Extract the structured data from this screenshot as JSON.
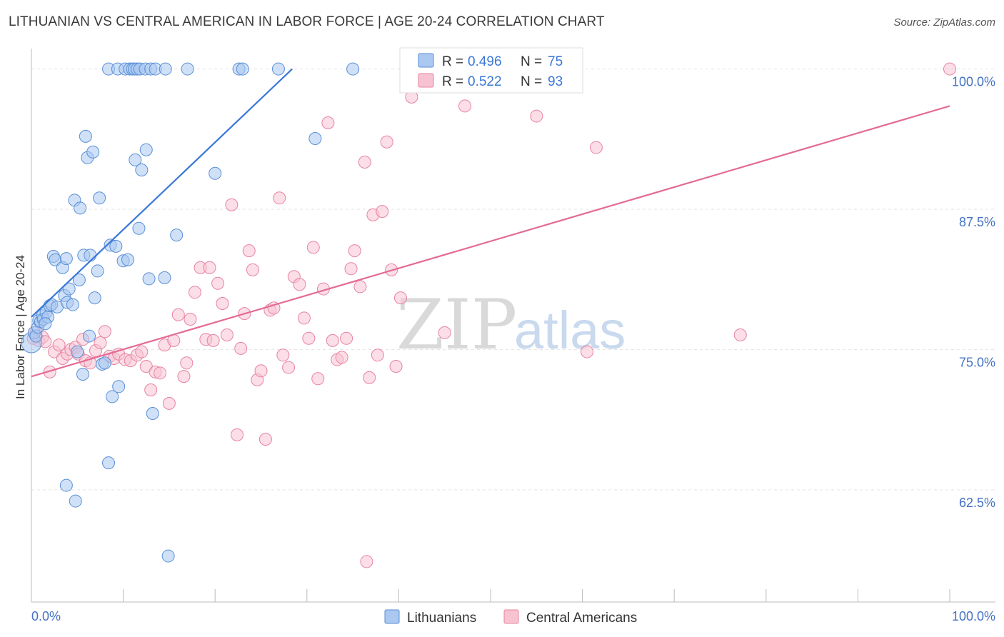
{
  "header": {
    "title": "LITHUANIAN VS CENTRAL AMERICAN IN LABOR FORCE | AGE 20-24 CORRELATION CHART",
    "source": "Source: ZipAtlas.com"
  },
  "watermark": {
    "zip": "ZIP",
    "atlas": "atlas"
  },
  "stats_box": {
    "rows": [
      {
        "r_label": "R =",
        "r_value": "0.496",
        "n_label": "N =",
        "n_value": "75"
      },
      {
        "r_label": "R =",
        "r_value": "0.522",
        "n_label": "N =",
        "n_value": "93"
      }
    ]
  },
  "legend": {
    "items": [
      {
        "label": "Lithuanians"
      },
      {
        "label": "Central Americans"
      }
    ]
  },
  "colors": {
    "blue_fill": "#aac8f0",
    "blue_stroke": "#5a8fd6",
    "blue_line": "#3a78d8",
    "pink_fill": "#f7c3d3",
    "pink_stroke": "#e7849f",
    "pink_line": "#e36b95",
    "tick_label": "#4472c4",
    "grid": "#e3e3e3"
  },
  "chart_data": {
    "type": "scatter",
    "title": "LITHUANIAN VS CENTRAL AMERICAN IN LABOR FORCE | AGE 20-24 CORRELATION CHART",
    "xlabel": "",
    "ylabel": "In Labor Force | Age 20-24",
    "xlim": [
      0,
      100
    ],
    "ylim": [
      52.5,
      101.5
    ],
    "x_tick_labels": [
      "0.0%",
      "100.0%"
    ],
    "y_ticks": [
      62.5,
      75.0,
      87.5,
      100.0
    ],
    "y_tick_labels": [
      "62.5%",
      "75.0%",
      "87.5%",
      "100.0%"
    ],
    "grid": true,
    "legend_position": "bottom-center",
    "series": [
      {
        "name": "Lithuanians",
        "stats": {
          "R": 0.496,
          "N": 75
        },
        "trend": {
          "x": [
            0.0,
            28.4
          ],
          "y": [
            77.9,
            100.0
          ]
        },
        "points": [
          [
            0.0,
            75.6
          ],
          [
            0.3,
            76.5
          ],
          [
            0.5,
            76.2
          ],
          [
            0.7,
            77.0
          ],
          [
            0.8,
            77.6
          ],
          [
            1.0,
            77.5
          ],
          [
            1.2,
            78.0
          ],
          [
            1.3,
            77.7
          ],
          [
            1.6,
            78.3
          ],
          [
            1.8,
            77.9
          ],
          [
            2.0,
            78.9
          ],
          [
            2.2,
            79.0
          ],
          [
            2.4,
            83.3
          ],
          [
            2.6,
            83.0
          ],
          [
            2.8,
            78.8
          ],
          [
            3.4,
            82.3
          ],
          [
            3.6,
            79.8
          ],
          [
            3.8,
            83.1
          ],
          [
            3.9,
            79.2
          ],
          [
            4.1,
            80.4
          ],
          [
            4.5,
            79.0
          ],
          [
            4.7,
            88.3
          ],
          [
            5.0,
            74.8
          ],
          [
            5.2,
            81.2
          ],
          [
            5.3,
            87.6
          ],
          [
            5.6,
            72.8
          ],
          [
            5.7,
            83.4
          ],
          [
            5.9,
            94.0
          ],
          [
            6.1,
            92.1
          ],
          [
            6.3,
            76.2
          ],
          [
            6.4,
            83.4
          ],
          [
            6.7,
            92.6
          ],
          [
            6.9,
            79.6
          ],
          [
            7.2,
            82.0
          ],
          [
            7.4,
            88.5
          ],
          [
            7.7,
            73.7
          ],
          [
            8.0,
            73.8
          ],
          [
            8.4,
            64.9
          ],
          [
            8.4,
            100.0
          ],
          [
            8.6,
            84.3
          ],
          [
            8.8,
            70.8
          ],
          [
            9.2,
            84.2
          ],
          [
            9.4,
            100.0
          ],
          [
            9.5,
            71.7
          ],
          [
            10.0,
            82.9
          ],
          [
            10.2,
            100.0
          ],
          [
            10.5,
            83.0
          ],
          [
            10.7,
            100.0
          ],
          [
            11.0,
            100.0
          ],
          [
            11.2,
            100.0
          ],
          [
            11.3,
            91.9
          ],
          [
            11.5,
            100.0
          ],
          [
            11.7,
            85.8
          ],
          [
            11.8,
            100.0
          ],
          [
            12.0,
            91.0
          ],
          [
            12.4,
            100.0
          ],
          [
            12.5,
            92.8
          ],
          [
            12.8,
            81.3
          ],
          [
            13.0,
            100.0
          ],
          [
            13.2,
            69.3
          ],
          [
            13.5,
            100.0
          ],
          [
            14.5,
            81.4
          ],
          [
            14.6,
            100.0
          ],
          [
            14.9,
            56.6
          ],
          [
            15.8,
            85.2
          ],
          [
            17.0,
            100.0
          ],
          [
            20.0,
            90.7
          ],
          [
            22.6,
            100.0
          ],
          [
            23.0,
            100.0
          ],
          [
            26.9,
            100.0
          ],
          [
            30.9,
            93.8
          ],
          [
            35.0,
            100.0
          ],
          [
            3.8,
            62.9
          ],
          [
            4.8,
            61.5
          ],
          [
            1.5,
            77.3
          ]
        ]
      },
      {
        "name": "Central Americans",
        "stats": {
          "R": 0.522,
          "N": 93
        },
        "trend": {
          "x": [
            0.0,
            100.0
          ],
          "y": [
            72.6,
            96.7
          ]
        },
        "points": [
          [
            0.2,
            76.0
          ],
          [
            0.5,
            76.5
          ],
          [
            0.8,
            75.8
          ],
          [
            1.2,
            76.1
          ],
          [
            1.5,
            75.7
          ],
          [
            2.0,
            73.0
          ],
          [
            2.5,
            74.8
          ],
          [
            3.0,
            75.4
          ],
          [
            3.4,
            74.2
          ],
          [
            3.9,
            74.6
          ],
          [
            4.3,
            75.0
          ],
          [
            4.8,
            75.2
          ],
          [
            5.1,
            74.6
          ],
          [
            5.6,
            75.9
          ],
          [
            5.9,
            74.0
          ],
          [
            6.4,
            73.8
          ],
          [
            7.0,
            74.9
          ],
          [
            7.5,
            75.6
          ],
          [
            8.0,
            76.6
          ],
          [
            8.5,
            74.4
          ],
          [
            9.0,
            74.2
          ],
          [
            9.5,
            74.6
          ],
          [
            10.2,
            74.1
          ],
          [
            10.8,
            74.0
          ],
          [
            11.5,
            74.5
          ],
          [
            12.0,
            74.8
          ],
          [
            12.5,
            73.5
          ],
          [
            13.0,
            71.4
          ],
          [
            13.5,
            73.0
          ],
          [
            14.0,
            72.9
          ],
          [
            14.5,
            75.4
          ],
          [
            15.0,
            70.2
          ],
          [
            15.5,
            75.8
          ],
          [
            16.0,
            78.1
          ],
          [
            16.6,
            72.6
          ],
          [
            16.9,
            73.8
          ],
          [
            17.3,
            77.7
          ],
          [
            17.8,
            80.1
          ],
          [
            18.4,
            82.3
          ],
          [
            19.0,
            75.9
          ],
          [
            19.4,
            82.3
          ],
          [
            19.8,
            75.8
          ],
          [
            20.3,
            80.9
          ],
          [
            20.8,
            79.1
          ],
          [
            21.3,
            76.3
          ],
          [
            21.8,
            87.9
          ],
          [
            22.4,
            67.4
          ],
          [
            22.8,
            75.1
          ],
          [
            23.2,
            78.2
          ],
          [
            23.7,
            83.8
          ],
          [
            24.1,
            82.1
          ],
          [
            24.6,
            72.3
          ],
          [
            25.0,
            73.1
          ],
          [
            25.5,
            67.0
          ],
          [
            26.0,
            78.5
          ],
          [
            26.4,
            78.7
          ],
          [
            27.0,
            88.5
          ],
          [
            27.4,
            74.5
          ],
          [
            28.0,
            73.4
          ],
          [
            28.6,
            81.5
          ],
          [
            29.2,
            80.8
          ],
          [
            29.7,
            77.8
          ],
          [
            30.2,
            76.0
          ],
          [
            30.7,
            84.1
          ],
          [
            31.2,
            72.4
          ],
          [
            31.8,
            80.4
          ],
          [
            32.3,
            95.2
          ],
          [
            32.8,
            75.8
          ],
          [
            33.3,
            74.1
          ],
          [
            33.8,
            74.3
          ],
          [
            34.3,
            76.0
          ],
          [
            34.8,
            82.2
          ],
          [
            35.2,
            83.8
          ],
          [
            35.8,
            80.6
          ],
          [
            36.3,
            91.7
          ],
          [
            36.8,
            72.5
          ],
          [
            37.2,
            87.0
          ],
          [
            37.7,
            74.5
          ],
          [
            38.2,
            87.3
          ],
          [
            38.7,
            93.5
          ],
          [
            39.2,
            82.1
          ],
          [
            39.7,
            73.5
          ],
          [
            40.2,
            79.6
          ],
          [
            41.4,
            97.5
          ],
          [
            45.0,
            76.5
          ],
          [
            47.2,
            96.7
          ],
          [
            55.0,
            95.8
          ],
          [
            56.9,
            100.0
          ],
          [
            60.5,
            74.8
          ],
          [
            61.5,
            93.0
          ],
          [
            77.2,
            76.3
          ],
          [
            100.0,
            100.0
          ],
          [
            36.5,
            56.1
          ]
        ]
      }
    ]
  }
}
